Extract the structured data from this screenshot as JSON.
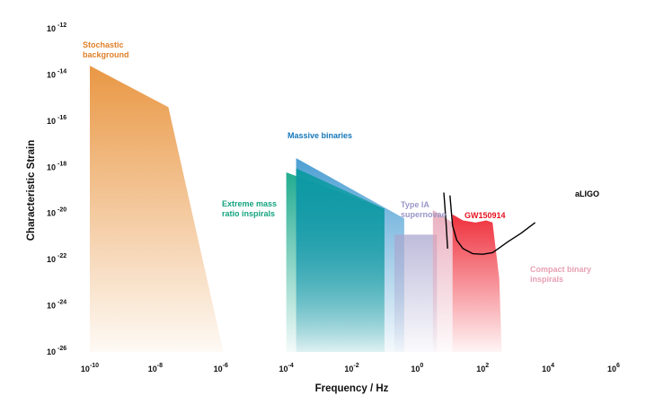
{
  "chart_data": {
    "type": "area",
    "xlabel": "Frequency / Hz",
    "ylabel": "Characteristic Strain",
    "x_scale": "log",
    "y_scale": "log",
    "xlim": [
      1e-10,
      1000000.0
    ],
    "ylim": [
      1e-26,
      1e-12
    ],
    "x_ticks": [
      {
        "value": 1e-10,
        "base": "10",
        "exp": "-10"
      },
      {
        "value": 1e-08,
        "base": "10",
        "exp": "-8"
      },
      {
        "value": 1e-06,
        "base": "10",
        "exp": "-6"
      },
      {
        "value": 0.0001,
        "base": "10",
        "exp": "-4"
      },
      {
        "value": 0.01,
        "base": "10",
        "exp": "-2"
      },
      {
        "value": 1,
        "base": "10",
        "exp": "0"
      },
      {
        "value": 100.0,
        "base": "10",
        "exp": "2"
      },
      {
        "value": 10000.0,
        "base": "10",
        "exp": "4"
      },
      {
        "value": 1000000.0,
        "base": "10",
        "exp": "6"
      }
    ],
    "y_ticks": [
      {
        "value": 1e-12,
        "base": "10",
        "exp": "-12"
      },
      {
        "value": 1e-14,
        "base": "10",
        "exp": "-14"
      },
      {
        "value": 1e-16,
        "base": "10",
        "exp": "-16"
      },
      {
        "value": 1e-18,
        "base": "10",
        "exp": "-18"
      },
      {
        "value": 1e-20,
        "base": "10",
        "exp": "-20"
      },
      {
        "value": 1e-22,
        "base": "10",
        "exp": "-22"
      },
      {
        "value": 1e-24,
        "base": "10",
        "exp": "-24"
      },
      {
        "value": 1e-26,
        "base": "10",
        "exp": "-26"
      }
    ],
    "grid": false,
    "regions": [
      {
        "name": "Stochastic background",
        "color": "#e8923a",
        "polygon": [
          [
            1e-10,
            2.5e-14
          ],
          [
            2.5e-08,
            4e-16
          ],
          [
            1.2e-06,
            1e-26
          ],
          [
            1e-10,
            1e-26
          ]
        ]
      },
      {
        "name": "Extreme mass ratio inspirals",
        "color": "#16a88a",
        "polygon": [
          [
            0.0001,
            6e-19
          ],
          [
            0.1,
            1.6e-20
          ],
          [
            0.1,
            1e-26
          ],
          [
            0.0001,
            1e-26
          ]
        ]
      },
      {
        "name": "Massive binaries",
        "color": "#2e8fcc",
        "polygon": [
          [
            0.0002,
            2.5e-18
          ],
          [
            0.4,
            6e-21
          ],
          [
            0.4,
            1e-26
          ],
          [
            0.0002,
            1e-26
          ]
        ]
      },
      {
        "name": "Massive binaries (inner)",
        "color": "#0a9aa0",
        "polygon": [
          [
            0.0002,
            9e-19
          ],
          [
            0.1,
            1.6e-20
          ],
          [
            0.1,
            1e-26
          ],
          [
            0.0002,
            1e-26
          ]
        ]
      },
      {
        "name": "Type IA supernovae",
        "color": "#a9a6cf",
        "polygon": [
          [
            0.2,
            1.2e-21
          ],
          [
            4,
            1.2e-21
          ],
          [
            4,
            1e-26
          ],
          [
            0.2,
            1e-26
          ]
        ]
      },
      {
        "name": "Compact binary inspirals",
        "color": "#e6a2b4",
        "polygon": [
          [
            3,
            1.4e-20
          ],
          [
            12,
            4e-21
          ],
          [
            12,
            1e-26
          ],
          [
            3,
            1e-26
          ]
        ]
      },
      {
        "name": "GW150914",
        "color": "#ee2532",
        "polygon": [
          [
            12,
            9e-21
          ],
          [
            25,
            5e-21
          ],
          [
            60,
            4e-21
          ],
          [
            130,
            5e-21
          ],
          [
            200,
            4e-21
          ],
          [
            320,
            1.5e-23
          ],
          [
            380,
            1e-26
          ],
          [
            12,
            1e-26
          ]
        ]
      }
    ],
    "curves": [
      {
        "name": "aLIGO",
        "color": "#000000",
        "points": [
          [
            10,
            6e-20
          ],
          [
            12,
            3e-21
          ],
          [
            16,
            7e-22
          ],
          [
            25,
            3e-22
          ],
          [
            50,
            1.8e-22
          ],
          [
            100,
            1.7e-22
          ],
          [
            200,
            2e-22
          ],
          [
            300,
            3e-22
          ],
          [
            600,
            6e-22
          ],
          [
            1500,
            1.4e-21
          ],
          [
            4000,
            4e-21
          ]
        ]
      },
      {
        "name": "aLIGO (spike)",
        "color": "#000000",
        "points": [
          [
            6.5,
            8e-20
          ],
          [
            7.5,
            5e-21
          ],
          [
            8.5,
            3e-22
          ]
        ]
      }
    ],
    "annotations": [
      {
        "id": "stochastic",
        "lines": [
          "Stochastic",
          "background"
        ],
        "color": "#e0802a"
      },
      {
        "id": "massive",
        "lines": [
          "Massive binaries"
        ],
        "color": "#1577b8"
      },
      {
        "id": "emri",
        "lines": [
          "Extreme mass",
          "ratio inspirals"
        ],
        "color": "#14a37f"
      },
      {
        "id": "typeia",
        "lines": [
          "Type IA",
          "supernovae"
        ],
        "color": "#9a96c8"
      },
      {
        "id": "gw150914",
        "lines": [
          "GW150914"
        ],
        "color": "#e8121f"
      },
      {
        "id": "aligo",
        "lines": [
          "aLIGO"
        ],
        "color": "#000000"
      },
      {
        "id": "compact",
        "lines": [
          "Compact binary",
          "inspirals"
        ],
        "color": "#e8a0b4"
      }
    ]
  }
}
